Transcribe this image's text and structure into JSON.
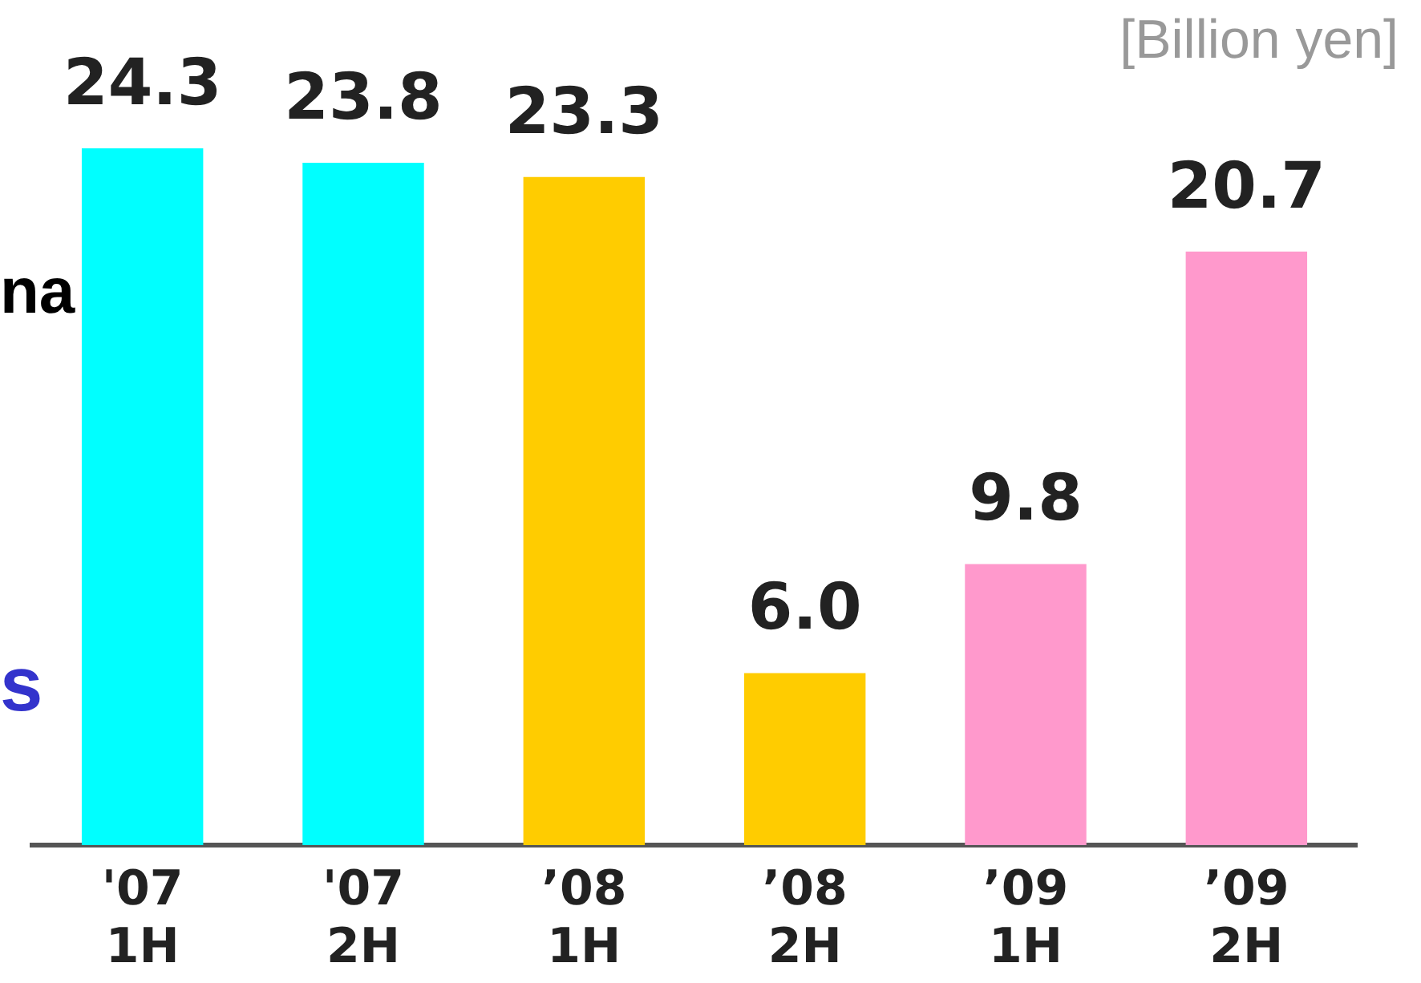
{
  "chart_data": {
    "type": "bar",
    "categories": [
      "'07\n1H",
      "'07\n2H",
      "’08\n1H",
      "’08\n2H",
      "’09\n1H",
      "’09\n2H"
    ],
    "values": [
      24.3,
      23.8,
      23.3,
      6.0,
      9.8,
      20.7
    ],
    "colors": [
      "#00ffff",
      "#00ffff",
      "#ffcc00",
      "#ffcc00",
      "#ff99cc",
      "#ff99cc"
    ],
    "value_labels": [
      "24.3",
      "23.8",
      "23.3",
      "6.0",
      "9.8",
      "20.7"
    ],
    "legend": false,
    "annotations": [
      "[Billion yen]",
      "na",
      "s"
    ]
  }
}
